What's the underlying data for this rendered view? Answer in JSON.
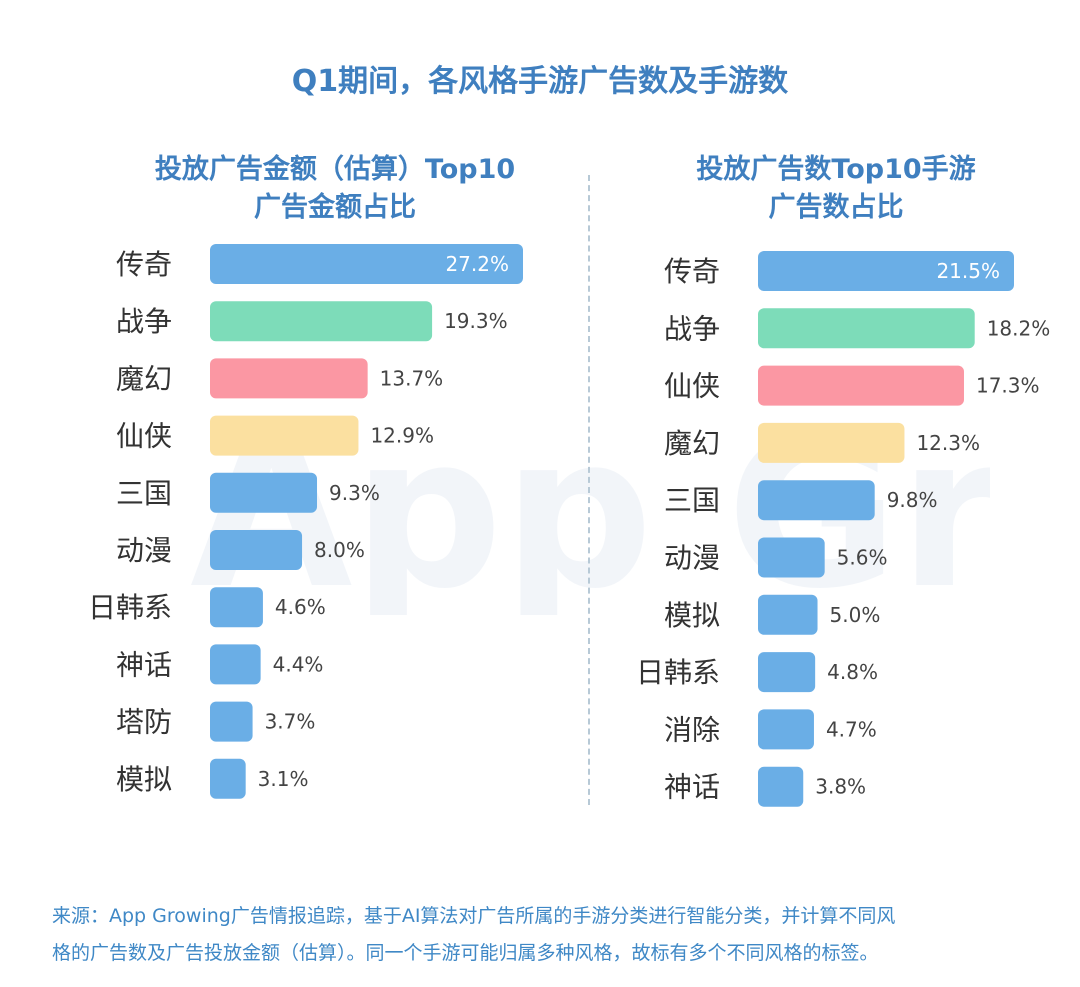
{
  "title": "Q1期间，各风格手游广告数及手游数",
  "chart_data": [
    {
      "type": "bar",
      "orientation": "horizontal",
      "title": [
        "投放广告金额（估算）Top10",
        "广告金额占比"
      ],
      "categories": [
        "传奇",
        "战争",
        "魔幻",
        "仙侠",
        "三国",
        "动漫",
        "日韩系",
        "神话",
        "塔防",
        "模拟"
      ],
      "values": [
        27.2,
        19.3,
        13.7,
        12.9,
        9.3,
        8.0,
        4.6,
        4.4,
        3.7,
        3.1
      ],
      "labels": [
        "27.2%",
        "19.3%",
        "13.7%",
        "12.9%",
        "9.3%",
        "8.0%",
        "4.6%",
        "4.4%",
        "3.7%",
        "3.1%"
      ],
      "unit": "%"
    },
    {
      "type": "bar",
      "orientation": "horizontal",
      "title": [
        "投放广告数Top10手游",
        "广告数占比"
      ],
      "categories": [
        "传奇",
        "战争",
        "仙侠",
        "魔幻",
        "三国",
        "动漫",
        "模拟",
        "日韩系",
        "消除",
        "神话"
      ],
      "values": [
        21.5,
        18.2,
        17.3,
        12.3,
        9.8,
        5.6,
        5.0,
        4.8,
        4.7,
        3.8
      ],
      "labels": [
        "21.5%",
        "18.2%",
        "17.3%",
        "12.3%",
        "9.8%",
        "5.6%",
        "5.0%",
        "4.8%",
        "4.7%",
        "3.8%"
      ],
      "unit": "%"
    }
  ],
  "colors": {
    "title": "#3f7fbf",
    "category_text": "#333333",
    "value_text": "#444444",
    "value_inside": "#ffffff",
    "bar_first": "#6aaee6",
    "bar_second": "#7ddcb9",
    "bar_third": "#fb97a3",
    "bar_fourth": "#fbe0a0",
    "bar_default": "#6aaee6",
    "footnote": "#3f88c6"
  },
  "watermark": "App Growing",
  "footnote": [
    "来源：App Growing广告情报追踪，基于AI算法对广告所属的手游分类进行智能分类，并计算不同风",
    "格的广告数及广告投放金额（估算）。同一个手游可能归属多种风格，故标有多个不同风格的标签。"
  ]
}
